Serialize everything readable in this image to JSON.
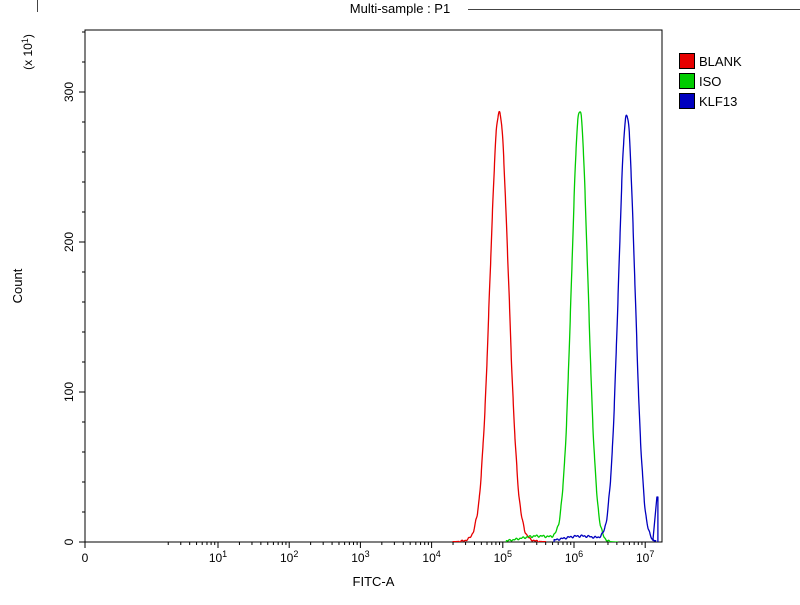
{
  "title": "Multi-sample : P1",
  "legend": [
    {
      "label": "BLANK",
      "color": "#e60000"
    },
    {
      "label": "ISO",
      "color": "#00cc00"
    },
    {
      "label": "KLF13",
      "color": "#0000bf"
    }
  ],
  "chart_data": {
    "type": "line",
    "subtype": "flow-cytometry-histogram",
    "title": "Multi-sample : P1",
    "xlabel": "FITC-A",
    "ylabel": "Count",
    "y_unit": {
      "prefix": "(x 10",
      "exp": "1",
      "suffix": ")"
    },
    "x_scale": "log",
    "x_ticks": [
      "0",
      "10^1",
      "10^2",
      "10^3",
      "10^4",
      "10^5",
      "10^6",
      "10^7"
    ],
    "y_ticks": [
      0,
      100,
      200,
      300
    ],
    "y_minor_step": 20,
    "ylim": [
      0,
      341
    ],
    "xlim_log10": [
      0,
      7.23
    ],
    "grid": false,
    "legend_position": "top-right-outside",
    "series": [
      {
        "name": "BLANK",
        "color": "#e60000",
        "peak": {
          "log10_x": 4.95,
          "x": 90000,
          "count": 283,
          "sigma_decades": 0.13
        },
        "tail": {
          "log10_x": 4.95,
          "count": 4,
          "sigma_decades": 0.26
        },
        "range_log10": [
          4.3,
          5.6
        ],
        "points": [
          [
            4.5,
            1
          ],
          [
            4.6,
            8
          ],
          [
            4.7,
            44
          ],
          [
            4.8,
            148
          ],
          [
            4.9,
            262
          ],
          [
            4.95,
            283
          ],
          [
            5.0,
            262
          ],
          [
            5.1,
            148
          ],
          [
            5.2,
            44
          ],
          [
            5.3,
            8
          ],
          [
            5.4,
            1
          ]
        ]
      },
      {
        "name": "ISO",
        "color": "#00cc00",
        "peak": {
          "log10_x": 6.08,
          "x": 1200000,
          "count": 288,
          "sigma_decades": 0.115
        },
        "tail": {
          "log10_x": 5.5,
          "count": 4,
          "sigma_decades": 0.25
        },
        "range_log10": [
          5.05,
          6.62
        ],
        "points": [
          [
            5.4,
            4
          ],
          [
            5.6,
            4
          ],
          [
            5.7,
            2
          ],
          [
            5.8,
            15
          ],
          [
            5.9,
            79
          ],
          [
            6.0,
            225
          ],
          [
            6.08,
            288
          ],
          [
            6.16,
            226
          ],
          [
            6.25,
            94
          ],
          [
            6.35,
            17
          ],
          [
            6.45,
            2
          ]
        ]
      },
      {
        "name": "KLF13",
        "color": "#0000bf",
        "peak": {
          "log10_x": 6.74,
          "x": 5500000,
          "count": 285,
          "sigma_decades": 0.115
        },
        "tail": {
          "log10_x": 6.1,
          "count": 4,
          "sigma_decades": 0.25
        },
        "range_log10": [
          5.72,
          7.15
        ],
        "edge_spike": {
          "log10_x": 7.165,
          "count": 30
        },
        "points": [
          [
            6.0,
            4
          ],
          [
            6.2,
            4
          ],
          [
            6.4,
            4
          ],
          [
            6.5,
            29
          ],
          [
            6.6,
            137
          ],
          [
            6.7,
            268
          ],
          [
            6.74,
            285
          ],
          [
            6.8,
            248
          ],
          [
            6.9,
            108
          ],
          [
            7.0,
            23
          ],
          [
            7.1,
            3
          ],
          [
            7.165,
            30
          ]
        ]
      }
    ]
  }
}
